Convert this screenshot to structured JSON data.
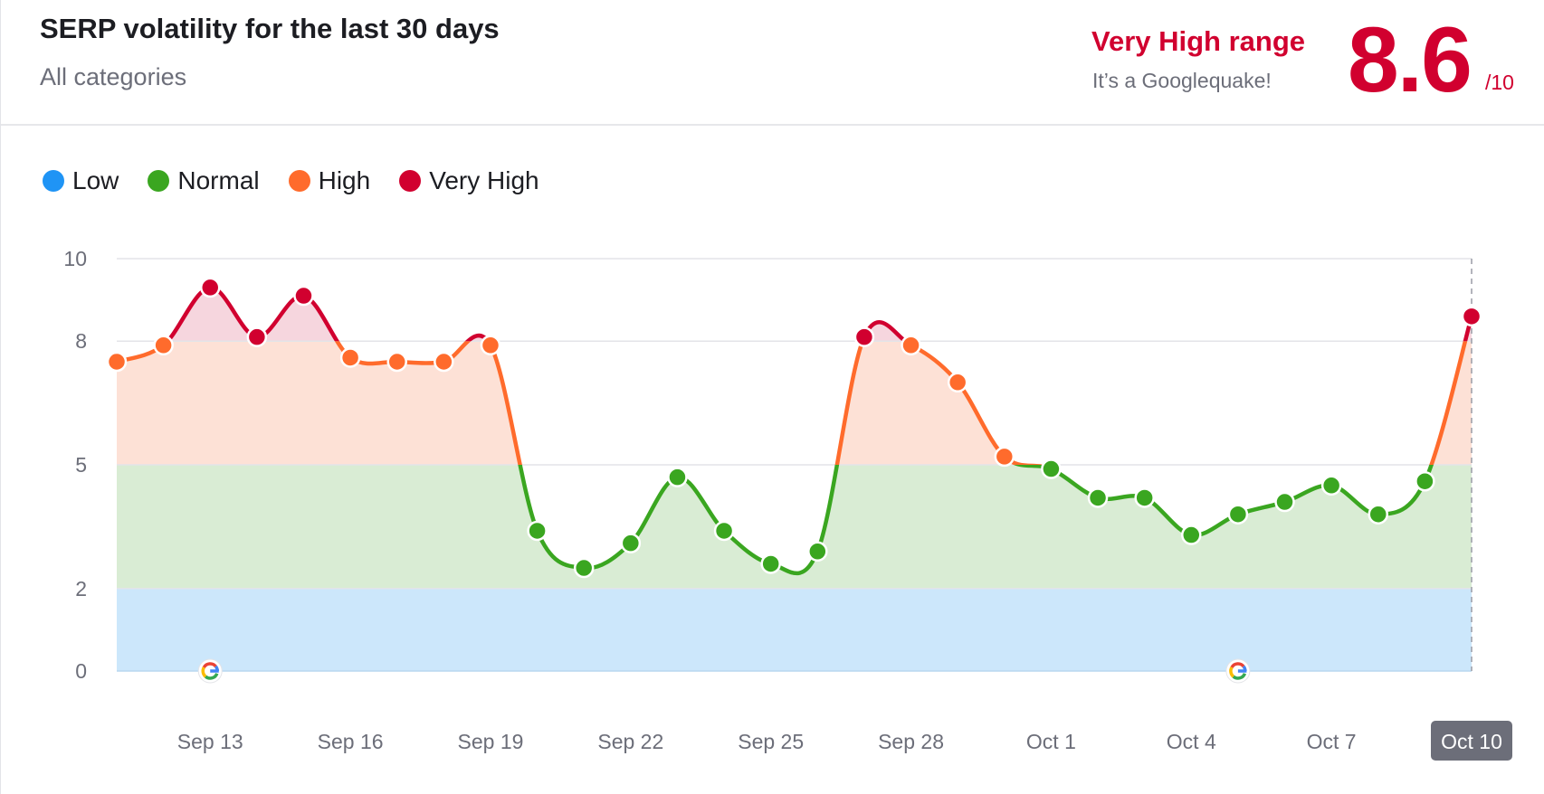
{
  "header": {
    "title": "SERP volatility for the last 30 days",
    "subtitle": "All categories",
    "range_label": "Very High range",
    "range_description": "It’s a Googlequake!",
    "score": "8.6",
    "score_suffix": "/10"
  },
  "legend": [
    {
      "label": "Low",
      "color": "#1f94f5"
    },
    {
      "label": "Normal",
      "color": "#3aa620"
    },
    {
      "label": "High",
      "color": "#ff6b2c"
    },
    {
      "label": "Very High",
      "color": "#d1002f"
    }
  ],
  "chart_data": {
    "type": "area",
    "title": "SERP volatility for the last 30 days",
    "xlabel": "",
    "ylabel": "",
    "ylim": [
      0,
      10
    ],
    "y_ticks": [
      0,
      2,
      5,
      8,
      10
    ],
    "x_tick_labels": [
      "Sep 13",
      "Sep 16",
      "Sep 19",
      "Sep 22",
      "Sep 25",
      "Sep 28",
      "Oct 1",
      "Oct 4",
      "Oct 7",
      "Oct 10"
    ],
    "highlighted_x_label": "Oct 10",
    "google_update_dates": [
      "Sep 13",
      "Oct 5"
    ],
    "bands": [
      {
        "name": "Low",
        "from": 0,
        "to": 2,
        "color": "#cce7fb"
      },
      {
        "name": "Normal",
        "from": 2,
        "to": 5,
        "color": "#d9ecd4"
      },
      {
        "name": "High",
        "from": 5,
        "to": 8,
        "color": "#fde1d6"
      },
      {
        "name": "Very High",
        "from": 8,
        "to": 10,
        "color": "#f6d6de"
      }
    ],
    "grid": true,
    "legend_position": "top-left",
    "series": [
      {
        "x": [
          "Sep 11",
          "Sep 12",
          "Sep 13",
          "Sep 14",
          "Sep 15",
          "Sep 16",
          "Sep 17",
          "Sep 18",
          "Sep 19",
          "Sep 20",
          "Sep 21",
          "Sep 22",
          "Sep 23",
          "Sep 24",
          "Sep 25",
          "Sep 26",
          "Sep 27",
          "Sep 28",
          "Sep 29",
          "Sep 30",
          "Oct 1",
          "Oct 2",
          "Oct 3",
          "Oct 4",
          "Oct 5",
          "Oct 6",
          "Oct 7",
          "Oct 8",
          "Oct 9",
          "Oct 10"
        ],
        "values": [
          7.5,
          7.9,
          9.3,
          8.1,
          9.1,
          7.6,
          7.5,
          7.5,
          7.9,
          3.4,
          2.5,
          3.1,
          4.7,
          3.4,
          2.6,
          2.9,
          8.1,
          7.9,
          7.0,
          5.2,
          4.9,
          4.2,
          4.2,
          3.3,
          3.8,
          4.1,
          4.5,
          3.8,
          4.6,
          8.6
        ]
      }
    ],
    "level_colors": {
      "low": "#1f94f5",
      "normal": "#3aa620",
      "high": "#ff6b2c",
      "very_high": "#d1002f"
    }
  }
}
